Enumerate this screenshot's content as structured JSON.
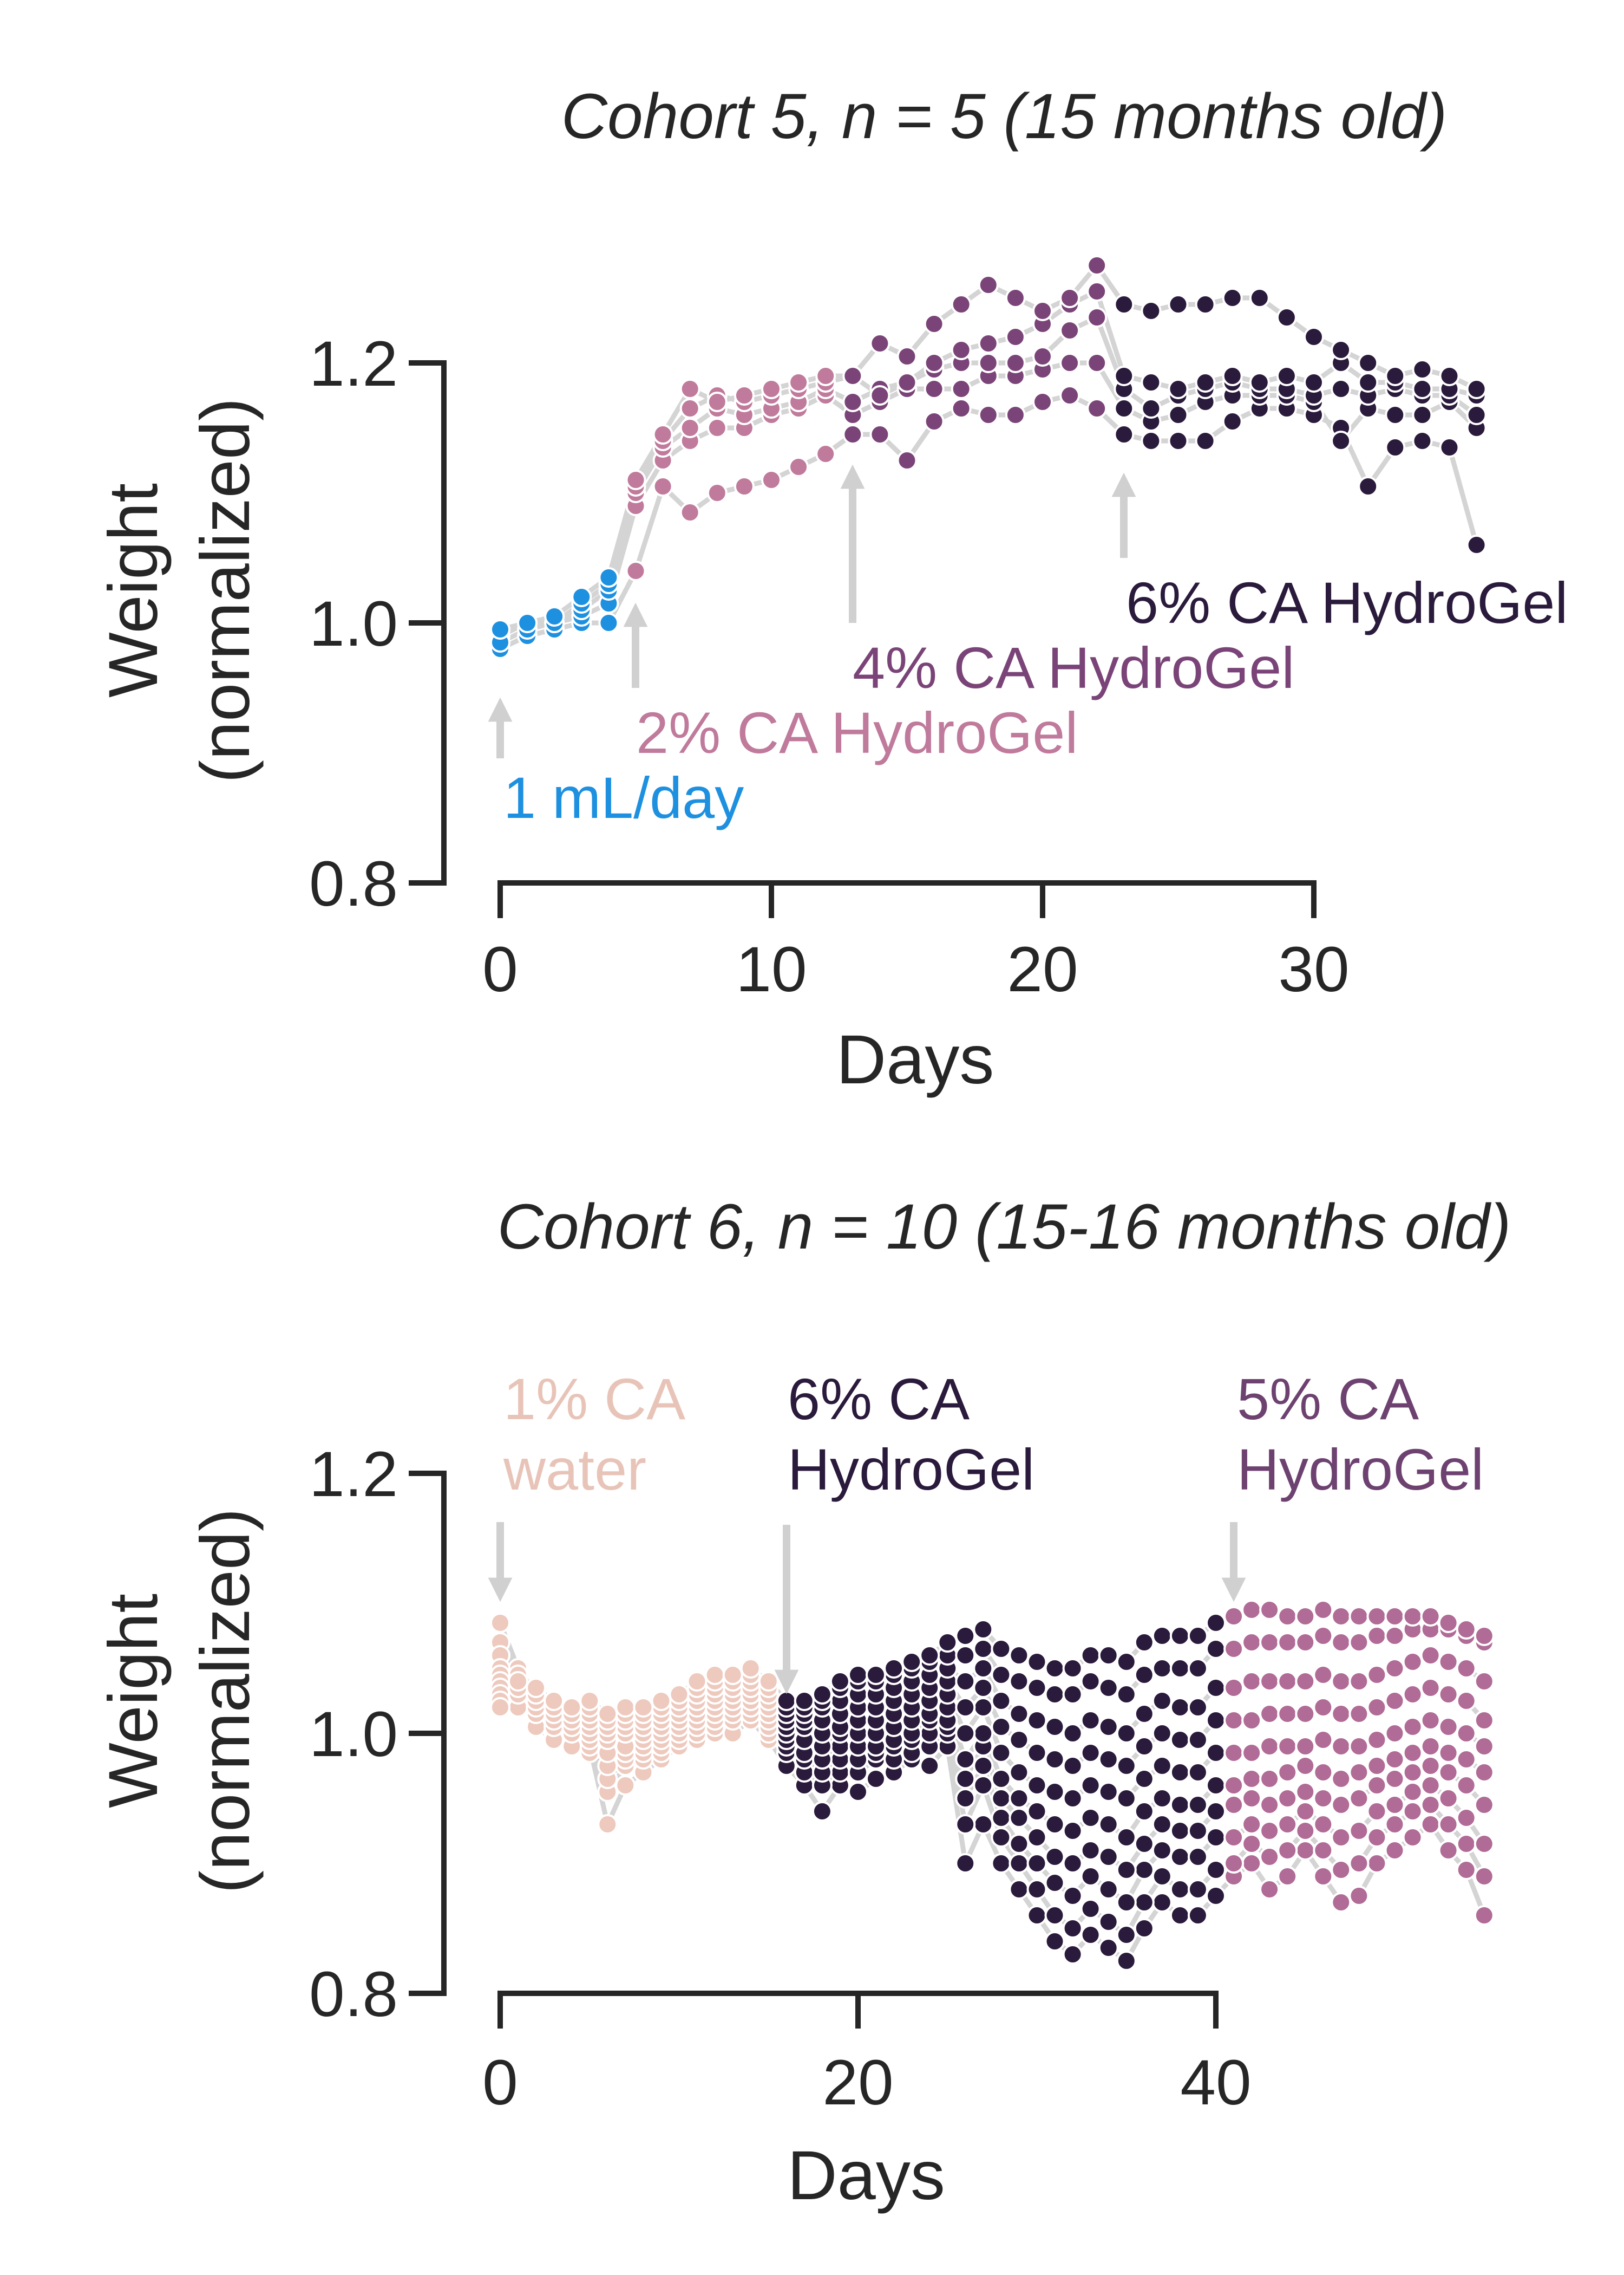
{
  "chart_data": [
    {
      "type": "scatter",
      "title": "Cohort 5, n = 5 (15 months old)",
      "xlabel": "Days",
      "ylabel": "Weight (normalized)",
      "xlim": [
        0,
        36
      ],
      "ylim": [
        0.8,
        1.2
      ],
      "xticks": [
        0,
        10,
        20,
        30
      ],
      "yticks": [
        0.8,
        1.0,
        1.2
      ],
      "grid": false,
      "connected_per_animal": true,
      "annotations": [
        {
          "text": "1 mL/day",
          "day": 0,
          "color": "#1e90e0"
        },
        {
          "text": "2% CA HydroGel",
          "day": 5,
          "color": "#c07a9c"
        },
        {
          "text": "4% CA HydroGel",
          "day": 13,
          "color": "#7a4478"
        },
        {
          "text": "6% CA HydroGel",
          "day": 23,
          "color": "#2a1a3c"
        }
      ],
      "phases": [
        {
          "label": "1 mL/day",
          "start": 0,
          "end": 4,
          "color": "#1e90e0"
        },
        {
          "label": "2% CA HydroGel",
          "start": 5,
          "end": 12,
          "color": "#c07a9c"
        },
        {
          "label": "4% CA HydroGel",
          "start": 13,
          "end": 22,
          "color": "#7a4478"
        },
        {
          "label": "6% CA HydroGel",
          "start": 23,
          "end": 36,
          "color": "#2a1a3c"
        }
      ],
      "x": [
        0,
        1,
        2,
        3,
        4,
        5,
        6,
        7,
        8,
        9,
        10,
        11,
        12,
        13,
        14,
        15,
        16,
        17,
        18,
        19,
        20,
        21,
        22,
        23,
        24,
        25,
        26,
        27,
        28,
        29,
        30,
        31,
        32,
        33,
        34,
        35,
        36
      ],
      "series": [
        {
          "values": [
            0.98,
            0.99,
            0.995,
            1.0,
            1.0,
            1.04,
            1.105,
            1.085,
            1.1,
            1.105,
            1.11,
            1.12,
            1.13,
            1.145,
            1.145,
            1.125,
            1.155,
            1.165,
            1.16,
            1.16,
            1.17,
            1.175,
            1.165,
            1.145,
            1.14,
            1.14,
            1.14,
            1.155,
            1.165,
            1.165,
            1.16,
            1.15,
            1.105,
            1.135,
            1.14,
            1.135,
            1.06
          ]
        },
        {
          "values": [
            0.99,
            1.0,
            1.0,
            1.005,
            1.015,
            1.09,
            1.125,
            1.14,
            1.15,
            1.15,
            1.16,
            1.165,
            1.175,
            1.16,
            1.17,
            1.18,
            1.18,
            1.18,
            1.19,
            1.19,
            1.195,
            1.2,
            1.2,
            1.165,
            1.155,
            1.16,
            1.17,
            1.175,
            1.175,
            1.175,
            1.17,
            1.14,
            1.165,
            1.16,
            1.16,
            1.17,
            1.15
          ]
        },
        {
          "values": [
            0.985,
            0.995,
            1.0,
            1.01,
            1.025,
            1.1,
            1.135,
            1.15,
            1.165,
            1.16,
            1.165,
            1.17,
            1.18,
            1.17,
            1.18,
            1.185,
            1.195,
            1.2,
            1.2,
            1.2,
            1.205,
            1.225,
            1.235,
            1.18,
            1.165,
            1.175,
            1.18,
            1.185,
            1.18,
            1.18,
            1.175,
            1.18,
            1.175,
            1.18,
            1.175,
            1.175,
            1.16
          ]
        },
        {
          "values": [
            0.995,
            1.0,
            1.0,
            1.015,
            1.03,
            1.105,
            1.14,
            1.165,
            1.175,
            1.17,
            1.175,
            1.18,
            1.185,
            1.19,
            1.175,
            1.185,
            1.2,
            1.21,
            1.215,
            1.22,
            1.23,
            1.245,
            1.255,
            1.19,
            1.185,
            1.18,
            1.185,
            1.19,
            1.185,
            1.19,
            1.185,
            1.2,
            1.185,
            1.185,
            1.18,
            1.18,
            1.175
          ]
        },
        {
          "values": [
            0.995,
            1.0,
            1.005,
            1.02,
            1.035,
            1.11,
            1.145,
            1.18,
            1.17,
            1.175,
            1.18,
            1.185,
            1.19,
            1.19,
            1.215,
            1.205,
            1.23,
            1.245,
            1.26,
            1.25,
            1.24,
            1.25,
            1.275,
            1.245,
            1.24,
            1.245,
            1.245,
            1.25,
            1.25,
            1.235,
            1.22,
            1.21,
            1.2,
            1.19,
            1.195,
            1.19,
            1.18
          ]
        }
      ]
    },
    {
      "type": "scatter",
      "title": "Cohort 6, n = 10 (15-16 months old)",
      "xlabel": "Days",
      "ylabel": "Weight (normalized)",
      "xlim": [
        0,
        55
      ],
      "ylim": [
        0.8,
        1.2
      ],
      "xticks": [
        0,
        20,
        40
      ],
      "yticks": [
        0.8,
        1.0,
        1.2
      ],
      "grid": false,
      "connected_per_animal": true,
      "annotations": [
        {
          "text": "1% CA water",
          "lines": [
            "1% CA",
            "water"
          ],
          "day": 0,
          "color": "#e8c4b8"
        },
        {
          "text": "6% CA HydroGel",
          "lines": [
            "6% CA",
            "HydroGel"
          ],
          "day": 16,
          "color": "#2a1a3c"
        },
        {
          "text": "5% CA HydroGel",
          "lines": [
            "5% CA",
            "HydroGel"
          ],
          "day": 41,
          "color": "#6e4270"
        }
      ],
      "phases": [
        {
          "label": "1% CA water",
          "start": 0,
          "end": 15,
          "color": "#eec9bd"
        },
        {
          "label": "6% CA HydroGel",
          "start": 16,
          "end": 40,
          "color": "#2a1a3c"
        },
        {
          "label": "5% CA HydroGel",
          "start": 41,
          "end": 55,
          "color": "#b06b96"
        }
      ],
      "x": [
        0,
        1,
        2,
        3,
        4,
        5,
        6,
        7,
        8,
        9,
        10,
        11,
        12,
        13,
        14,
        15,
        16,
        17,
        18,
        19,
        20,
        21,
        22,
        23,
        24,
        25,
        26,
        27,
        28,
        29,
        30,
        31,
        32,
        33,
        34,
        35,
        36,
        37,
        38,
        39,
        40,
        41,
        42,
        43,
        44,
        45,
        46,
        47,
        48,
        49,
        50,
        51,
        52,
        53,
        54,
        55
      ],
      "series": [
        {
          "values": [
            1.085,
            1.05,
            1.03,
            1.01,
            0.995,
            0.99,
            0.93,
            0.96,
            0.97,
            0.98,
            0.99,
            0.995,
            1.0,
            1.0,
            1.01,
            0.995,
            0.975,
            0.96,
            0.94,
            0.96,
            0.955,
            0.965,
            0.97,
            0.98,
            0.975,
            0.99,
            0.9,
            0.93,
            0.9,
            0.88,
            0.86,
            0.84,
            0.83,
            0.845,
            0.835,
            0.825,
            0.85,
            0.87,
            0.86,
            0.86,
            0.875,
            0.89,
            0.9,
            0.88,
            0.89,
            0.91,
            0.89,
            0.87,
            0.875,
            0.9,
            0.91,
            0.92,
            0.93,
            0.91,
            0.895,
            0.86
          ]
        },
        {
          "values": [
            1.07,
            1.045,
            1.02,
            1.0,
            0.99,
            0.985,
            0.955,
            0.975,
            0.98,
            0.985,
            0.99,
            1.0,
            1.005,
            1.01,
            1.015,
            1.0,
            0.985,
            0.97,
            0.96,
            0.97,
            0.97,
            0.98,
            0.98,
            0.985,
            0.99,
            1.0,
            0.93,
            0.96,
            0.92,
            0.9,
            0.88,
            0.86,
            0.85,
            0.865,
            0.855,
            0.845,
            0.87,
            0.89,
            0.88,
            0.88,
            0.895,
            0.9,
            0.915,
            0.905,
            0.91,
            0.925,
            0.91,
            0.895,
            0.9,
            0.92,
            0.93,
            0.94,
            0.945,
            0.93,
            0.915,
            0.89
          ]
        },
        {
          "values": [
            1.06,
            1.04,
            1.015,
            1.005,
            1.0,
            0.99,
            0.965,
            0.98,
            0.985,
            0.99,
            0.995,
            1.005,
            1.01,
            1.015,
            1.02,
            1.005,
            0.99,
            0.98,
            0.97,
            0.98,
            0.98,
            0.985,
            0.99,
            0.995,
            1.0,
            1.005,
            0.95,
            0.975,
            0.935,
            0.915,
            0.9,
            0.885,
            0.875,
            0.89,
            0.88,
            0.87,
            0.895,
            0.91,
            0.905,
            0.905,
            0.92,
            0.92,
            0.93,
            0.925,
            0.93,
            0.94,
            0.93,
            0.92,
            0.925,
            0.94,
            0.945,
            0.955,
            0.96,
            0.95,
            0.935,
            0.915
          ]
        },
        {
          "values": [
            1.05,
            1.035,
            1.01,
            1.0,
            0.995,
            0.995,
            0.975,
            0.985,
            0.99,
            0.995,
            1.0,
            1.01,
            1.015,
            1.02,
            1.025,
            1.01,
            0.995,
            0.985,
            0.98,
            0.99,
            0.99,
            0.99,
            0.995,
            1.0,
            1.01,
            1.01,
            0.965,
            0.99,
            0.95,
            0.935,
            0.92,
            0.905,
            0.9,
            0.91,
            0.905,
            0.895,
            0.915,
            0.93,
            0.925,
            0.925,
            0.94,
            0.945,
            0.95,
            0.945,
            0.95,
            0.955,
            0.95,
            0.945,
            0.95,
            0.96,
            0.965,
            0.97,
            0.975,
            0.97,
            0.96,
            0.945
          ]
        },
        {
          "values": [
            1.045,
            1.03,
            1.005,
            0.995,
            0.99,
            1.0,
            0.985,
            0.99,
            0.995,
            1.0,
            1.005,
            1.015,
            1.02,
            1.025,
            1.03,
            1.015,
            1.0,
            0.995,
            0.99,
            1.0,
            1.0,
            1.0,
            1.005,
            1.01,
            1.015,
            1.02,
            0.98,
            1.0,
            0.965,
            0.95,
            0.94,
            0.93,
            0.925,
            0.935,
            0.93,
            0.92,
            0.94,
            0.95,
            0.945,
            0.945,
            0.96,
            0.96,
            0.965,
            0.965,
            0.97,
            0.975,
            0.97,
            0.965,
            0.97,
            0.975,
            0.98,
            0.985,
            0.99,
            0.985,
            0.98,
            0.97
          ]
        },
        {
          "values": [
            1.04,
            1.025,
            1.015,
            1.005,
            1.0,
            1.005,
            0.995,
            1.0,
            1.0,
            1.005,
            1.01,
            1.02,
            1.025,
            1.03,
            1.03,
            1.02,
            1.005,
            1.005,
            1.0,
            1.005,
            1.01,
            1.01,
            1.015,
            1.02,
            1.025,
            1.03,
            1.0,
            1.02,
            0.985,
            0.97,
            0.96,
            0.955,
            0.95,
            0.96,
            0.955,
            0.95,
            0.965,
            0.975,
            0.97,
            0.97,
            0.985,
            0.985,
            0.985,
            0.99,
            0.99,
            0.99,
            0.995,
            0.99,
            0.99,
            0.995,
            1.0,
            1.005,
            1.01,
            1.005,
            1.0,
            0.99
          ]
        },
        {
          "values": [
            1.035,
            1.02,
            1.02,
            1.01,
            1.005,
            1.01,
            1.0,
            1.005,
            1.005,
            1.01,
            1.015,
            1.025,
            1.03,
            1.035,
            1.035,
            1.025,
            1.01,
            1.01,
            1.01,
            1.015,
            1.02,
            1.02,
            1.025,
            1.03,
            1.035,
            1.04,
            1.02,
            1.035,
            1.005,
            0.995,
            0.985,
            0.98,
            0.975,
            0.985,
            0.98,
            0.975,
            0.99,
            1.0,
            0.995,
            0.995,
            1.01,
            1.01,
            1.01,
            1.015,
            1.015,
            1.015,
            1.02,
            1.015,
            1.015,
            1.02,
            1.025,
            1.03,
            1.035,
            1.03,
            1.025,
            1.01
          ]
        },
        {
          "values": [
            1.03,
            1.03,
            1.025,
            1.015,
            1.01,
            1.015,
            1.005,
            1.01,
            1.01,
            1.015,
            1.02,
            1.03,
            1.035,
            1.04,
            1.04,
            1.03,
            1.015,
            1.015,
            1.02,
            1.025,
            1.03,
            1.03,
            1.035,
            1.04,
            1.045,
            1.05,
            1.04,
            1.05,
            1.025,
            1.015,
            1.01,
            1.005,
            1.0,
            1.01,
            1.005,
            1.0,
            1.015,
            1.025,
            1.02,
            1.02,
            1.035,
            1.035,
            1.04,
            1.04,
            1.04,
            1.04,
            1.045,
            1.04,
            1.04,
            1.045,
            1.05,
            1.055,
            1.06,
            1.055,
            1.05,
            1.04
          ]
        },
        {
          "values": [
            1.025,
            1.035,
            1.03,
            1.02,
            1.015,
            1.02,
            1.01,
            1.015,
            1.015,
            1.02,
            1.025,
            1.035,
            1.04,
            1.04,
            1.045,
            1.035,
            1.02,
            1.02,
            1.025,
            1.035,
            1.04,
            1.04,
            1.045,
            1.05,
            1.055,
            1.06,
            1.06,
            1.065,
            1.045,
            1.04,
            1.035,
            1.03,
            1.03,
            1.04,
            1.035,
            1.03,
            1.045,
            1.05,
            1.05,
            1.05,
            1.065,
            1.065,
            1.07,
            1.07,
            1.07,
            1.07,
            1.075,
            1.07,
            1.07,
            1.075,
            1.075,
            1.08,
            1.08,
            1.08,
            1.075,
            1.07
          ]
        },
        {
          "values": [
            1.02,
            1.04,
            1.035,
            1.025,
            1.02,
            1.025,
            1.015,
            1.02,
            1.02,
            1.025,
            1.03,
            1.04,
            1.045,
            1.045,
            1.05,
            1.04,
            1.025,
            1.025,
            1.03,
            1.04,
            1.045,
            1.045,
            1.05,
            1.055,
            1.06,
            1.07,
            1.075,
            1.08,
            1.065,
            1.06,
            1.055,
            1.05,
            1.05,
            1.06,
            1.06,
            1.055,
            1.07,
            1.075,
            1.075,
            1.075,
            1.085,
            1.09,
            1.095,
            1.095,
            1.09,
            1.09,
            1.095,
            1.09,
            1.09,
            1.09,
            1.09,
            1.09,
            1.09,
            1.085,
            1.08,
            1.075
          ]
        }
      ]
    }
  ]
}
